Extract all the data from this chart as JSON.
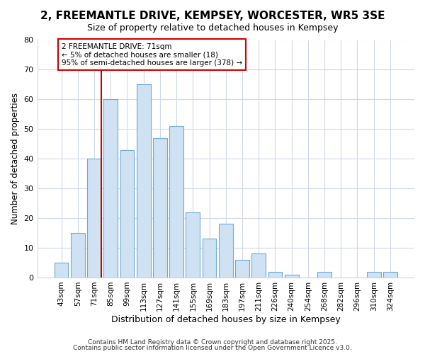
{
  "title": "2, FREEMANTLE DRIVE, KEMPSEY, WORCESTER, WR5 3SE",
  "subtitle": "Size of property relative to detached houses in Kempsey",
  "xlabel": "Distribution of detached houses by size in Kempsey",
  "ylabel": "Number of detached properties",
  "categories": [
    "43sqm",
    "57sqm",
    "71sqm",
    "85sqm",
    "99sqm",
    "113sqm",
    "127sqm",
    "141sqm",
    "155sqm",
    "169sqm",
    "183sqm",
    "197sqm",
    "211sqm",
    "226sqm",
    "240sqm",
    "254sqm",
    "268sqm",
    "282sqm",
    "296sqm",
    "310sqm",
    "324sqm"
  ],
  "values": [
    5,
    15,
    40,
    60,
    43,
    65,
    47,
    51,
    22,
    13,
    18,
    6,
    8,
    2,
    1,
    0,
    2,
    0,
    0,
    2,
    2
  ],
  "bar_color": "#cfe2f3",
  "bar_edge_color": "#6fa8d4",
  "highlight_index": 2,
  "highlight_line_color": "#cc0000",
  "ylim": [
    0,
    80
  ],
  "yticks": [
    0,
    10,
    20,
    30,
    40,
    50,
    60,
    70,
    80
  ],
  "annotation_text": "2 FREEMANTLE DRIVE: 71sqm\n← 5% of detached houses are smaller (18)\n95% of semi-detached houses are larger (378) →",
  "annotation_box_color": "#ffffff",
  "annotation_box_edge": "#cc0000",
  "background_color": "#ffffff",
  "grid_color": "#d0d8e8",
  "footer_line1": "Contains HM Land Registry data © Crown copyright and database right 2025.",
  "footer_line2": "Contains public sector information licensed under the Open Government Licence v3.0."
}
